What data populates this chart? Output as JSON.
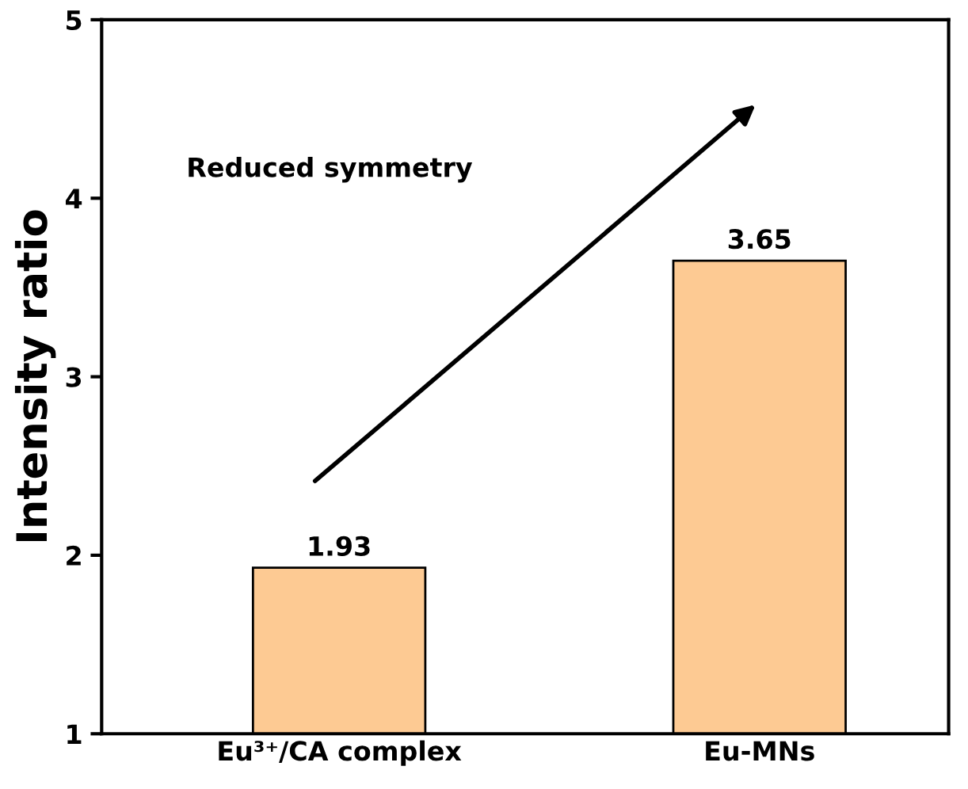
{
  "chart_data": {
    "type": "bar",
    "ylabel": "Intensity ratio",
    "categories": [
      "Eu³⁺/CA complex",
      "Eu-MNs"
    ],
    "values": [
      1.93,
      3.65
    ],
    "color": "#fdca93",
    "ylim": [
      1,
      5
    ],
    "yticks": [
      1,
      2,
      3,
      4,
      5
    ],
    "data_labels": true,
    "grid": false,
    "annotations": [
      "Reduced symmetry"
    ]
  }
}
